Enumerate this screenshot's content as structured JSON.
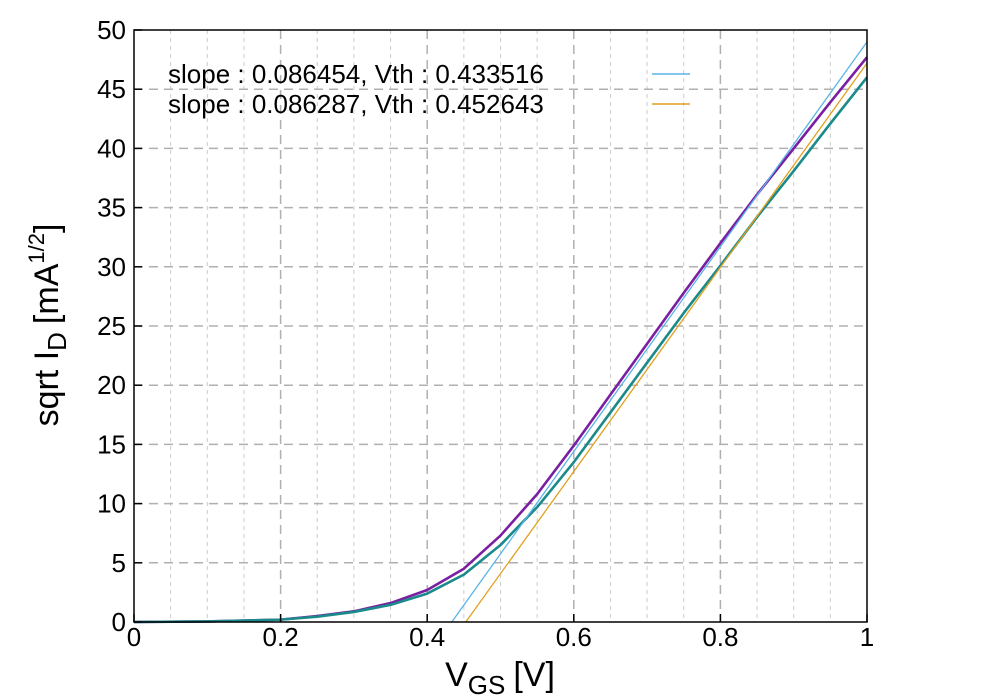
{
  "chart_data": {
    "type": "line",
    "title": "",
    "xlabel": {
      "main": "V",
      "sub": "GS",
      "unit": "[V]"
    },
    "ylabel": {
      "main": "sqrt I",
      "sub": "D",
      "unit_prefix": "[mA",
      "unit_sup": "1/2",
      "unit_suffix": "]"
    },
    "xlim": [
      0,
      1
    ],
    "ylim": [
      0,
      50
    ],
    "x_ticks": [
      0,
      0.2,
      0.4,
      0.6,
      0.8,
      1
    ],
    "x_tick_labels": [
      "0",
      "0.2",
      "0.4",
      "0.6",
      "0.8",
      "1"
    ],
    "y_ticks": [
      0,
      5,
      10,
      15,
      20,
      25,
      30,
      35,
      40,
      45,
      50
    ],
    "y_tick_labels": [
      "0",
      "5",
      "10",
      "15",
      "20",
      "25",
      "30",
      "35",
      "40",
      "45",
      "50"
    ],
    "grid": true,
    "legend_position": "top-left",
    "series": [
      {
        "color": "#7a1fa2",
        "x": [
          0,
          0.1,
          0.2,
          0.25,
          0.3,
          0.35,
          0.4,
          0.45,
          0.5,
          0.55,
          0.6,
          0.65,
          0.7,
          0.75,
          0.8,
          0.85,
          0.9,
          0.95,
          1.0
        ],
        "y": [
          0,
          0.05,
          0.2,
          0.5,
          0.9,
          1.6,
          2.7,
          4.5,
          7.3,
          10.8,
          14.9,
          19.2,
          23.5,
          27.8,
          32.0,
          36.1,
          40.0,
          43.9,
          47.7
        ]
      },
      {
        "color": "#1a8a8a",
        "x": [
          0,
          0.1,
          0.2,
          0.25,
          0.3,
          0.35,
          0.4,
          0.45,
          0.5,
          0.55,
          0.6,
          0.65,
          0.7,
          0.75,
          0.8,
          0.85,
          0.9,
          0.95,
          1.0
        ],
        "y": [
          0,
          0.05,
          0.2,
          0.45,
          0.85,
          1.45,
          2.4,
          4.0,
          6.5,
          9.7,
          13.5,
          17.7,
          21.9,
          26.1,
          30.1,
          34.2,
          38.1,
          42.1,
          46.0
        ]
      },
      {
        "color": "#5ab4e8",
        "name": "slope : 0.086454, Vth : 0.433516",
        "fit": true,
        "x": [
          0.433516,
          1.0
        ],
        "y": [
          0,
          49.0
        ]
      },
      {
        "color": "#e0a020",
        "name": "slope : 0.086287, Vth : 0.452643",
        "fit": true,
        "x": [
          0.452643,
          1.0
        ],
        "y": [
          0,
          47.2
        ]
      }
    ]
  }
}
